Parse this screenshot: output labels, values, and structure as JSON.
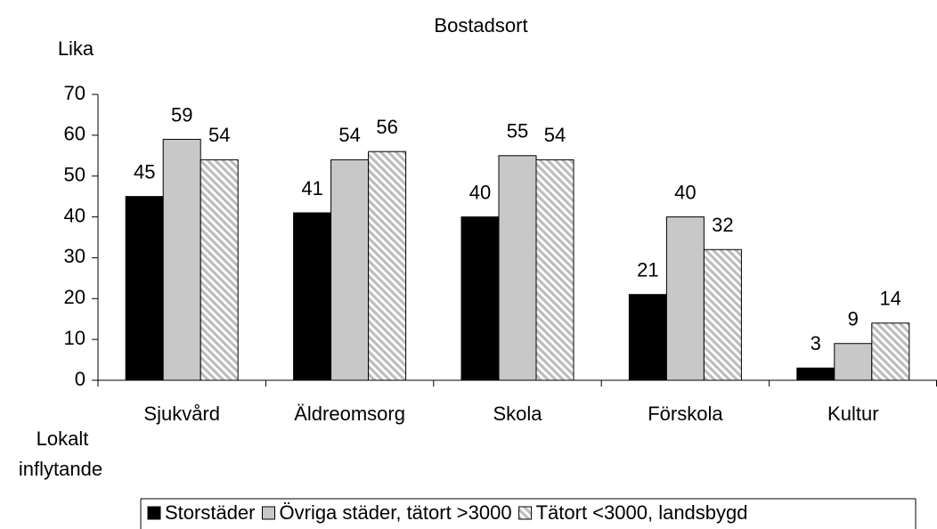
{
  "chart_data": {
    "type": "bar",
    "title": "Bostadsort",
    "y_label": "Lika",
    "x_label": [
      "Lokalt",
      "inflytande"
    ],
    "categories": [
      "Sjukvård",
      "Äldreomsorg",
      "Skola",
      "Förskola",
      "Kultur"
    ],
    "series": [
      {
        "name": "Storstäder",
        "color": "#000000",
        "values": [
          45,
          41,
          40,
          21,
          3
        ]
      },
      {
        "name": "Övriga städer, tätort >3000",
        "color": "#c8c8c8",
        "values": [
          59,
          54,
          55,
          40,
          9
        ]
      },
      {
        "name": "Tätort <3000, landsbygd",
        "color": "#bdbdbd",
        "pattern": "hatch",
        "values": [
          54,
          56,
          54,
          32,
          14
        ]
      }
    ],
    "ylim": [
      0,
      70
    ],
    "yticks": [
      0,
      10,
      20,
      30,
      40,
      50,
      60,
      70
    ],
    "grid": false,
    "legend": "bottom",
    "data_labels": true
  }
}
